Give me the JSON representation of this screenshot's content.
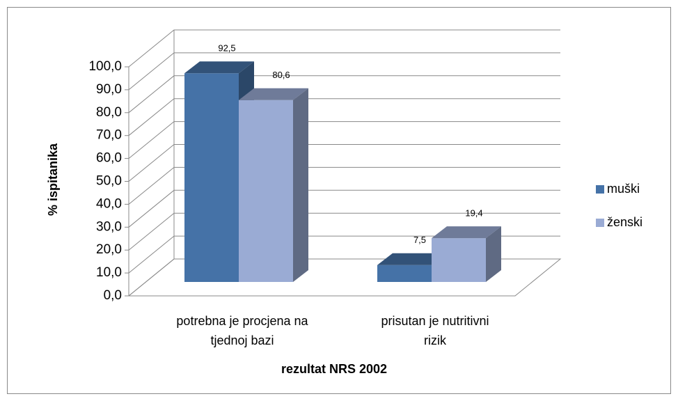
{
  "chart_data": {
    "type": "bar3d",
    "y_label": "% ispitanika",
    "x_label": "rezultat NRS 2002",
    "categories": [
      "potrebna je procjena na tjednoj bazi",
      "prisutan je nutritivni rizik"
    ],
    "series": [
      {
        "name": "muški",
        "color": "#4572a7",
        "values": [
          92.5,
          7.5
        ],
        "value_labels": [
          "92,5",
          "7,5"
        ]
      },
      {
        "name": "ženski",
        "color": "#9aabd4",
        "values": [
          80.6,
          19.4
        ],
        "value_labels": [
          "80,6",
          "19,4"
        ]
      }
    ],
    "ylim": [
      0,
      100
    ],
    "yticks": [
      {
        "value": 0,
        "label": "0,0"
      },
      {
        "value": 10,
        "label": "10,0"
      },
      {
        "value": 20,
        "label": "20,0"
      },
      {
        "value": 30,
        "label": "30,0"
      },
      {
        "value": 40,
        "label": "40,0"
      },
      {
        "value": 50,
        "label": "50,0"
      },
      {
        "value": 60,
        "label": "60,0"
      },
      {
        "value": 70,
        "label": "70,0"
      },
      {
        "value": 80,
        "label": "80,0"
      },
      {
        "value": 90,
        "label": "90,0"
      },
      {
        "value": 100,
        "label": "100,0"
      }
    ],
    "grid": true,
    "legend": "right"
  }
}
